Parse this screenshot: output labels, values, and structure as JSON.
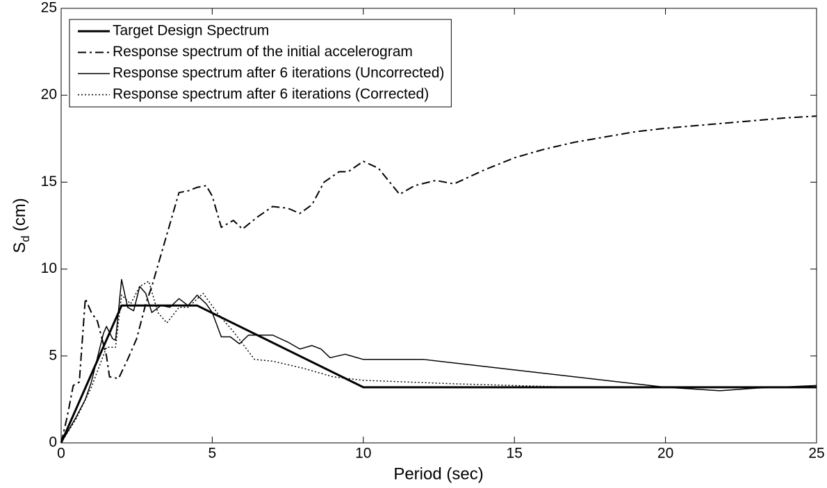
{
  "chart_data": {
    "type": "line",
    "xlabel": "Period (sec)",
    "ylabel": [
      "S",
      "d",
      "(cm)"
    ],
    "xlim": [
      0,
      25
    ],
    "ylim": [
      0,
      25
    ],
    "xticks": [
      0,
      5,
      10,
      15,
      20,
      25
    ],
    "yticks": [
      0,
      5,
      10,
      15,
      20,
      25
    ],
    "grid": false,
    "legend": "upper left",
    "series": [
      {
        "name": "Target Design Spectrum",
        "color": "#000000",
        "linestyle": "-",
        "linewidth": 3,
        "x": [
          0,
          2,
          4.5,
          10,
          25
        ],
        "values": [
          0,
          7.9,
          7.9,
          3.2,
          3.2
        ]
      },
      {
        "name": "Response spectrum of the initial accelerogram",
        "color": "#000000",
        "linestyle": "-.",
        "linewidth": 2,
        "x": [
          0,
          0.2,
          0.4,
          0.6,
          0.8,
          1.0,
          1.2,
          1.5,
          1.6,
          1.9,
          2.2,
          2.5,
          2.8,
          3.0,
          3.5,
          3.9,
          4.2,
          4.5,
          4.8,
          5.0,
          5.3,
          5.7,
          6.0,
          6.5,
          7.0,
          7.5,
          7.9,
          8.3,
          8.7,
          9.2,
          9.5,
          10,
          10.5,
          11.2,
          11.7,
          12.4,
          13,
          14,
          15,
          16,
          17,
          18,
          19,
          20,
          22,
          24,
          25
        ],
        "values": [
          0,
          1.5,
          3.3,
          3.5,
          8.3,
          7.5,
          7.0,
          5.0,
          3.8,
          3.7,
          4.8,
          6.0,
          8.0,
          9.0,
          12,
          14.4,
          14.5,
          14.7,
          14.8,
          14.2,
          12.4,
          12.8,
          12.3,
          13.0,
          13.6,
          13.5,
          13.2,
          13.7,
          15,
          15.6,
          15.6,
          16.2,
          15.8,
          14.3,
          14.8,
          15.1,
          14.9,
          15.7,
          16.4,
          16.9,
          17.3,
          17.6,
          17.9,
          18.1,
          18.4,
          18.7,
          18.8
        ]
      },
      {
        "name": "Response spectrum after 6 iterations (Uncorrected)",
        "color": "#000000",
        "linestyle": "-",
        "linewidth": 1.5,
        "x": [
          0,
          0.5,
          0.8,
          1.0,
          1.4,
          1.5,
          1.7,
          1.8,
          2.0,
          2.2,
          2.4,
          2.6,
          2.8,
          3.0,
          3.3,
          3.6,
          3.9,
          4.2,
          4.5,
          4.8,
          5.0,
          5.3,
          5.6,
          5.9,
          6.2,
          7.0,
          7.5,
          7.9,
          8.3,
          8.6,
          8.9,
          9.4,
          10,
          12,
          15,
          18,
          20,
          21.8,
          23,
          25
        ],
        "values": [
          0,
          1.5,
          2.5,
          3.5,
          6.3,
          6.7,
          6.0,
          5.9,
          9.4,
          7.8,
          7.6,
          9.0,
          8.6,
          7.5,
          7.9,
          7.8,
          8.3,
          7.9,
          8.5,
          8.0,
          7.5,
          6.1,
          6.1,
          5.7,
          6.2,
          6.2,
          5.8,
          5.4,
          5.6,
          5.4,
          4.9,
          5.1,
          4.8,
          4.8,
          4.2,
          3.6,
          3.2,
          3.0,
          3.15,
          3.3
        ]
      },
      {
        "name": "Response spectrum after 6 iterations (Corrected)",
        "color": "#000000",
        "linestyle": ":",
        "linewidth": 1.5,
        "x": [
          0,
          0.5,
          1.0,
          1.5,
          1.8,
          2.0,
          2.3,
          2.6,
          2.9,
          3.2,
          3.5,
          3.9,
          4.2,
          4.7,
          5.2,
          5.7,
          6.4,
          7,
          8,
          9,
          10,
          13,
          17,
          20,
          25
        ],
        "values": [
          0,
          1.4,
          3.2,
          5.5,
          5.5,
          8.5,
          8.0,
          9.0,
          9.3,
          7.5,
          6.9,
          7.8,
          7.8,
          8.6,
          7.4,
          6.4,
          4.8,
          4.7,
          4.3,
          3.8,
          3.6,
          3.4,
          3.2,
          3.2,
          3.2
        ]
      }
    ]
  }
}
